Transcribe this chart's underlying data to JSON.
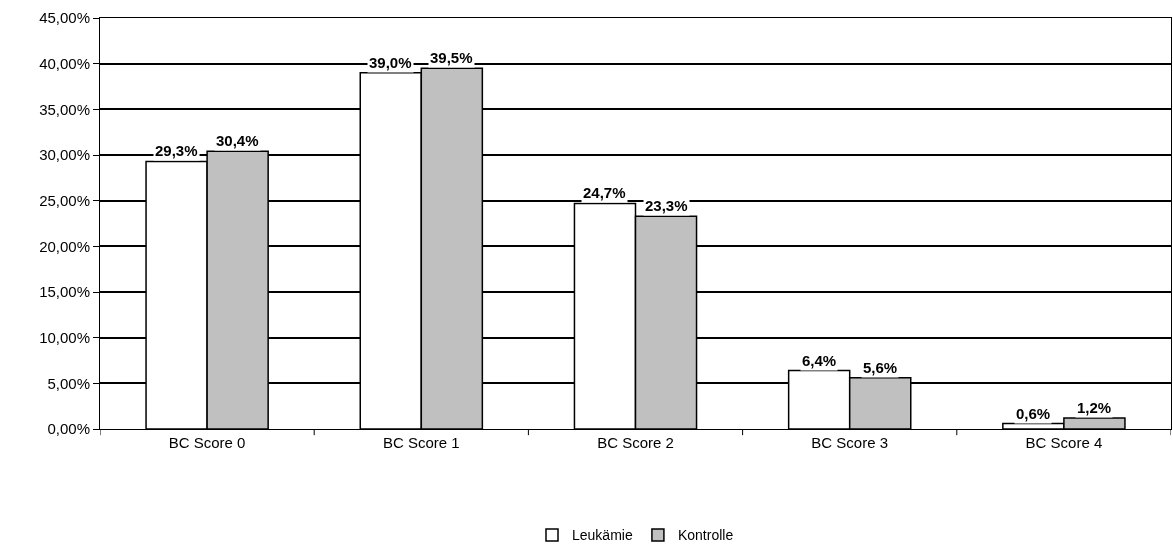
{
  "chart_data": {
    "type": "bar",
    "categories": [
      "BC Score 0",
      "BC Score 1",
      "BC Score 2",
      "BC Score 3",
      "BC Score 4"
    ],
    "series": [
      {
        "name": "Leukämie",
        "color": "#ffffff",
        "values": [
          29.3,
          39.0,
          24.7,
          6.4,
          0.6
        ],
        "value_labels": [
          "29,3%",
          "39,0%",
          "24,7%",
          "6,4%",
          "0,6%"
        ]
      },
      {
        "name": "Kontrolle",
        "color": "#c0c0c0",
        "values": [
          30.4,
          39.5,
          23.3,
          5.6,
          1.2
        ],
        "value_labels": [
          "30,4%",
          "39,5%",
          "23,3%",
          "5,6%",
          "1,2%"
        ]
      }
    ],
    "ylim": [
      0,
      45
    ],
    "yticks": [
      {
        "value": 0,
        "label": "0,00%"
      },
      {
        "value": 5,
        "label": "5,00%"
      },
      {
        "value": 10,
        "label": "10,00%"
      },
      {
        "value": 15,
        "label": "15,00%"
      },
      {
        "value": 20,
        "label": "20,00%"
      },
      {
        "value": 25,
        "label": "25,00%"
      },
      {
        "value": 30,
        "label": "30,00%"
      },
      {
        "value": 35,
        "label": "35,00%"
      },
      {
        "value": 40,
        "label": "40,00%"
      },
      {
        "value": 45,
        "label": "45,00%"
      }
    ],
    "grid": "y",
    "legend": "bottom"
  }
}
